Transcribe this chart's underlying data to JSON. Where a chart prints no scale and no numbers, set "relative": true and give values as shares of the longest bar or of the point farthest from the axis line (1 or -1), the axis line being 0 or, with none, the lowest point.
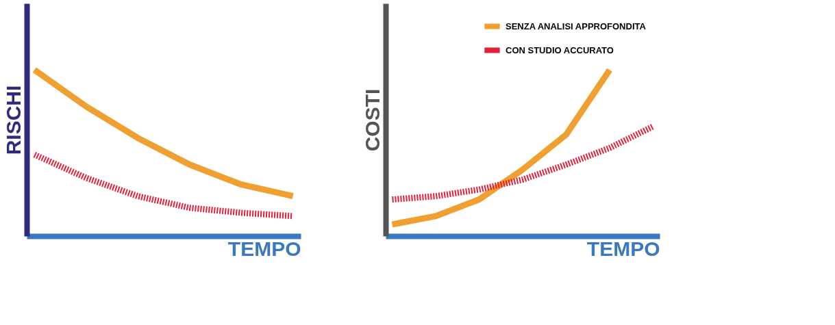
{
  "chart_data": [
    {
      "type": "line",
      "relative": true,
      "xlabel": "TEMPO",
      "ylabel": "RISCHI",
      "categories": [
        null,
        null,
        null,
        null,
        null,
        null
      ],
      "grid": false,
      "legend": false,
      "series": [
        {
          "color": "#f0a030",
          "line_style": "solid",
          "values": [
            1.0,
            0.78,
            0.59,
            0.43,
            0.31,
            0.24
          ]
        },
        {
          "color": "#e0203a",
          "line_style": "dashed",
          "values": [
            0.49,
            0.35,
            0.24,
            0.17,
            0.14,
            0.12
          ]
        }
      ]
    },
    {
      "type": "line",
      "relative": true,
      "xlabel": "TEMPO",
      "ylabel": "COSTI",
      "categories": [
        null,
        null,
        null,
        null,
        null,
        null,
        null
      ],
      "grid": false,
      "legend": "top right",
      "series": [
        {
          "name": "SENZA ANALISI APPROFONDITA",
          "color": "#f0a030",
          "line_style": "solid",
          "values": [
            0.07,
            0.12,
            0.22,
            0.4,
            0.61,
            1.0,
            null
          ]
        },
        {
          "name": "CON STUDIO ACCURATO",
          "color": "#e0203a",
          "line_style": "dashed",
          "values": [
            0.22,
            0.24,
            0.28,
            0.34,
            0.43,
            0.53,
            0.66
          ]
        }
      ]
    }
  ]
}
